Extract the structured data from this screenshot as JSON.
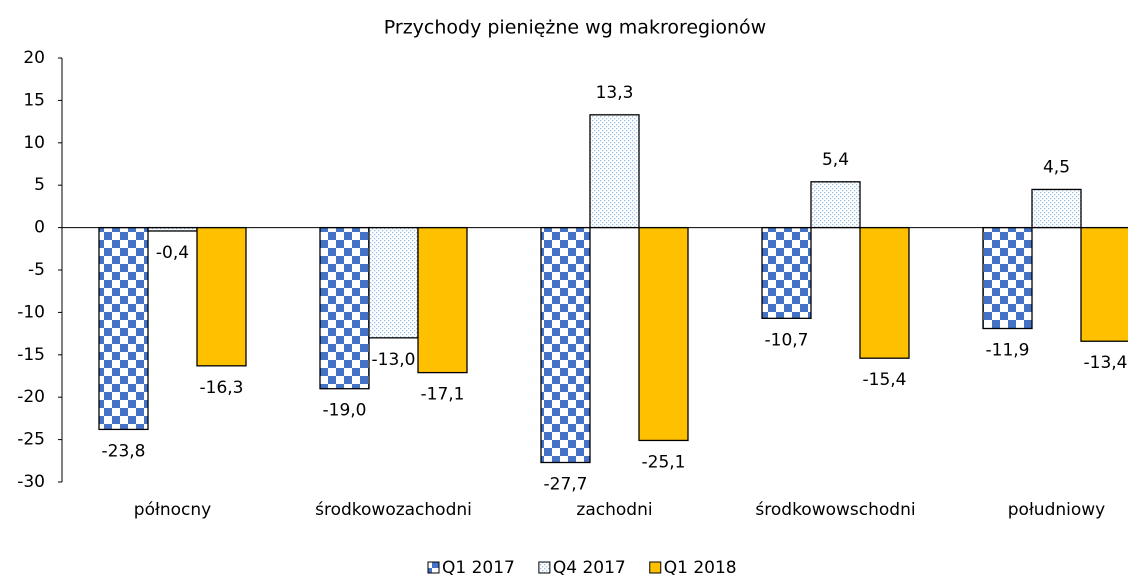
{
  "chart_data": {
    "type": "bar",
    "title": "Przychody pieniężne wg makroregionów",
    "categories": [
      "północny",
      "środkowozachodni",
      "zachodni",
      "środkowowschodni",
      "południowy"
    ],
    "series": [
      {
        "name": "Q1 2017",
        "color": "#4472c4",
        "values": [
          -23.8,
          -19.0,
          -27.7,
          -10.7,
          -11.9
        ],
        "value_labels": [
          "-23,8",
          "-19,0",
          "-27,7",
          "-10,7",
          "-11,9"
        ]
      },
      {
        "name": "Q4 2017",
        "color": "#9dc3e6",
        "values": [
          -0.4,
          -13.0,
          13.3,
          5.4,
          4.5
        ],
        "value_labels": [
          "-0,4",
          "-13,0",
          "13,3",
          "5,4",
          "4,5"
        ]
      },
      {
        "name": "Q1 2018",
        "color": "#ffc000",
        "values": [
          -16.3,
          -17.1,
          -25.1,
          -15.4,
          -13.4
        ],
        "value_labels": [
          "-16,3",
          "-17,1",
          "-25,1",
          "-15,4",
          "-13,4"
        ]
      }
    ],
    "ylim": [
      -30,
      20
    ],
    "yticks": [
      20,
      15,
      10,
      5,
      0,
      -5,
      -10,
      -15,
      -20,
      -25,
      -30
    ],
    "grid": false
  }
}
